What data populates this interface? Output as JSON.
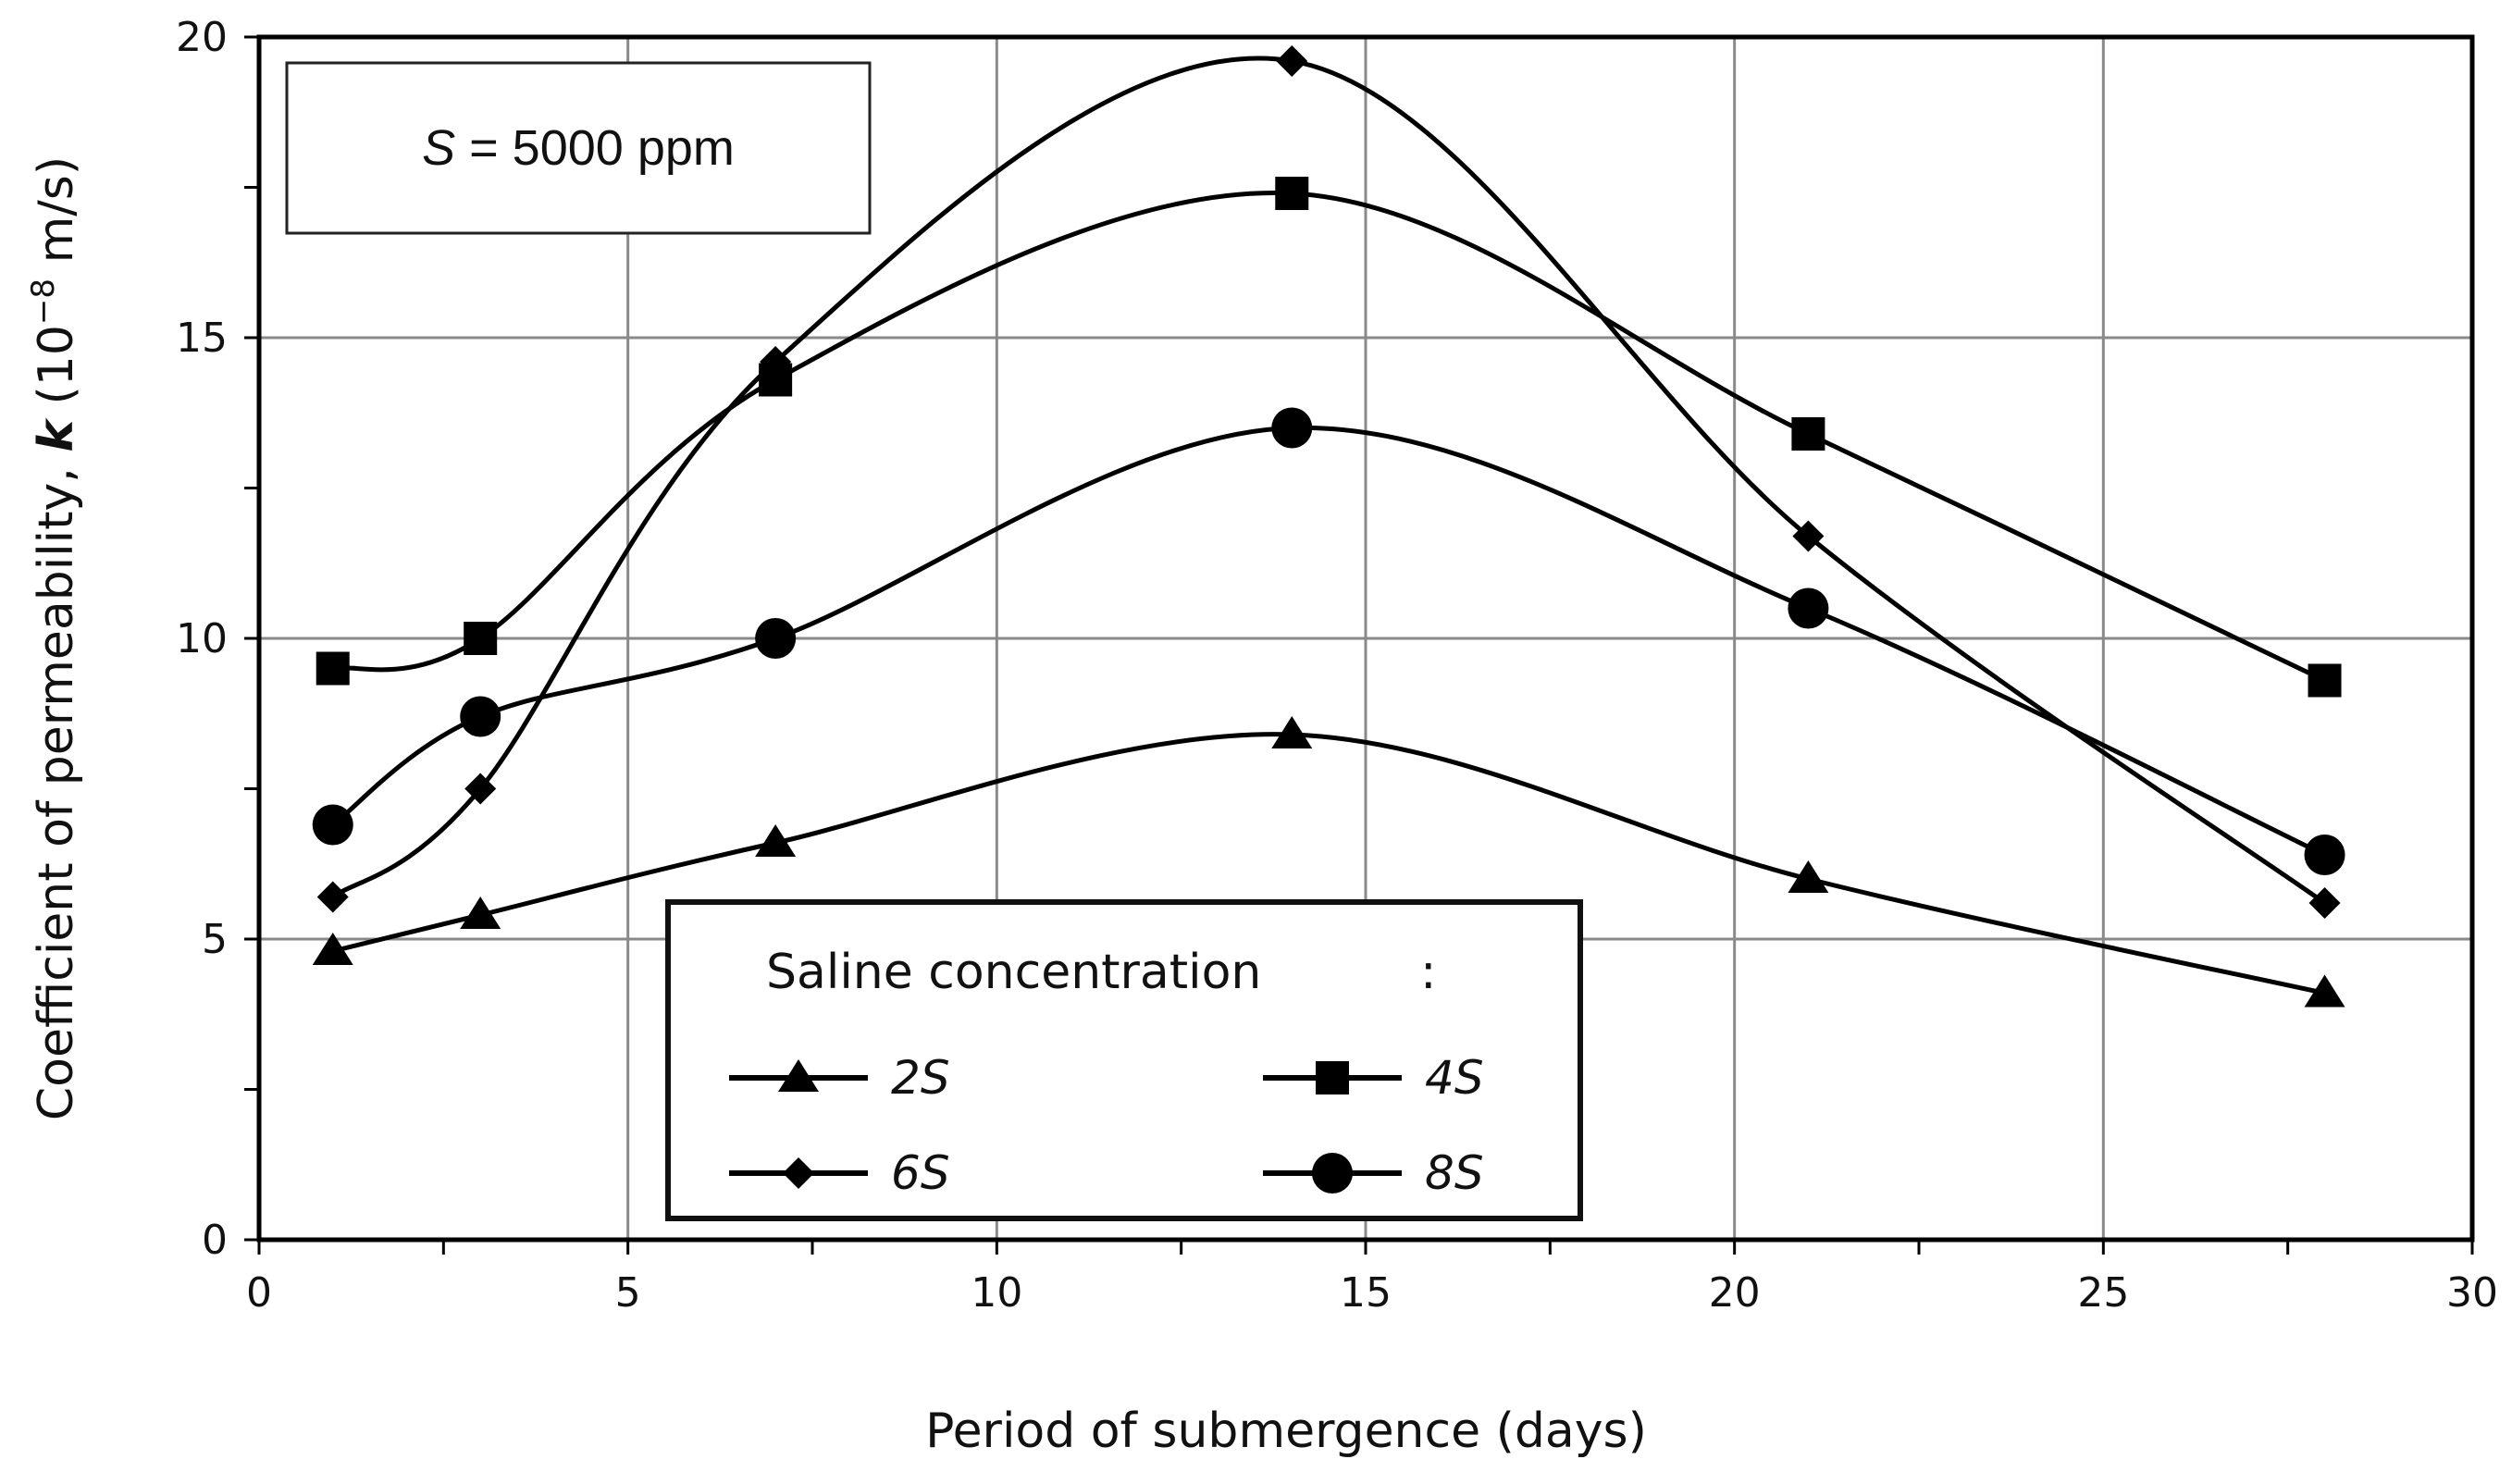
{
  "chart_data": {
    "type": "line",
    "title": "",
    "xlabel": "Period of submergence (days)",
    "ylabel_prefix": "Coefficient of permeability, ",
    "ylabel_var": "k",
    "ylabel_unit_open": " (10",
    "ylabel_exp": "−8",
    "ylabel_unit_close": " m/s)",
    "xlim": [
      0,
      30
    ],
    "ylim": [
      0,
      20
    ],
    "xticks": [
      0,
      5,
      10,
      15,
      20,
      25,
      30
    ],
    "yticks": [
      0,
      5,
      10,
      15,
      20
    ],
    "grid": true,
    "annotation": {
      "var": "S",
      "text": " = 5000 ppm"
    },
    "legend": {
      "placement": "bottom-center",
      "title": "Saline concentration",
      "title_suffix": ":"
    },
    "x": [
      1,
      3,
      7,
      14,
      21,
      28
    ],
    "series": [
      {
        "name": "2S",
        "num": "2",
        "var": "S",
        "marker": "triangle",
        "values": [
          4.8,
          5.4,
          6.6,
          8.4,
          6.0,
          4.1
        ]
      },
      {
        "name": "4S",
        "num": "4",
        "var": "S",
        "marker": "square",
        "values": [
          9.5,
          10.0,
          14.3,
          17.4,
          13.4,
          9.3
        ]
      },
      {
        "name": "6S",
        "num": "6",
        "var": "S",
        "marker": "diamond",
        "values": [
          5.7,
          7.5,
          14.6,
          19.6,
          11.7,
          5.6
        ]
      },
      {
        "name": "8S",
        "num": "8",
        "var": "S",
        "marker": "circle",
        "values": [
          6.9,
          8.7,
          10.0,
          13.5,
          10.5,
          6.4
        ]
      }
    ]
  }
}
